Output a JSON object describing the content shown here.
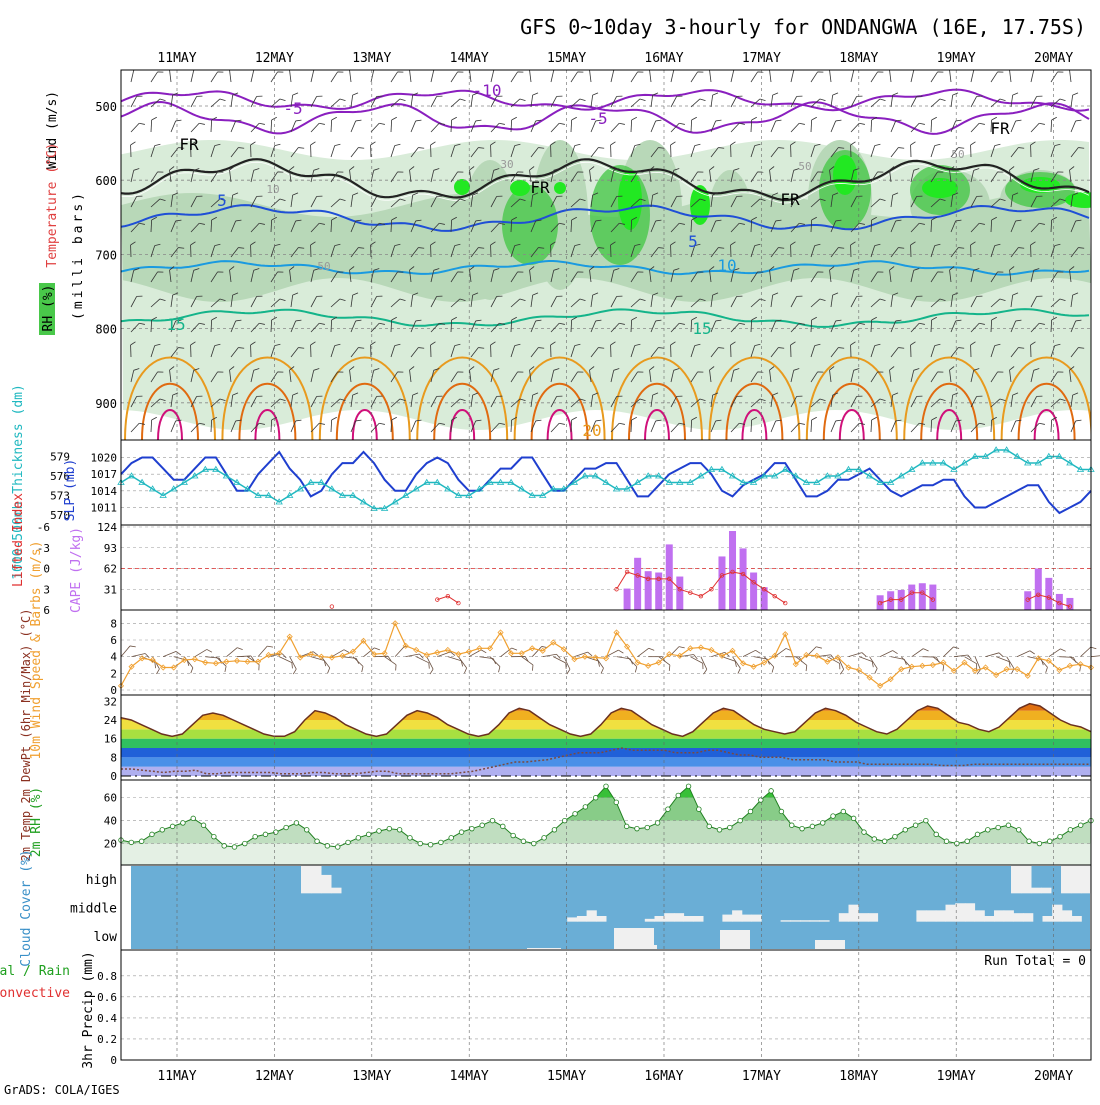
{
  "title": "GFS 0~10day 3-hourly for ONDANGWA (16E, 17.75S)",
  "footer": "GrADS: COLA/IGES",
  "days": [
    "11MAY",
    "12MAY",
    "13MAY",
    "14MAY",
    "15MAY",
    "16MAY",
    "17MAY",
    "18MAY",
    "19MAY",
    "20MAY"
  ],
  "colors": {
    "purple": "#8a1fbf",
    "blue": "#1f4fd6",
    "lightblue": "#1a9ae0",
    "green": "#14b48a",
    "orange": "#e89a1e",
    "darkorange": "#e06a10",
    "magenta": "#d0107a",
    "rh_light": "#d9ecd9",
    "rh_mid": "#b8d8b8",
    "rh_dark": "#49c84a",
    "rh_bright": "#22e822",
    "slp": "#1f3fcf",
    "thick": "#20b8c0",
    "cape": "#c070f0",
    "li": "#e03030",
    "wind10": "#f0a030",
    "cloud_bg": "#6aaed6"
  },
  "chart_data": [
    {
      "type": "contour",
      "panel": "upper-air",
      "ylabels": [
        "Wind (m/s)",
        "Temperature (°C)",
        "RH (%)",
        "(milli bars)"
      ],
      "yticks": [
        500,
        600,
        700,
        800,
        900
      ],
      "ylim": [
        950,
        450
      ],
      "temperature_contour_labels": [
        "-10",
        "-5",
        "-5",
        "FR",
        "FR",
        "FR",
        "FR",
        "5",
        "5",
        "10",
        "15",
        "15",
        "20"
      ],
      "rh_contour_labels": [
        "30",
        "50",
        "10",
        "50",
        "50"
      ]
    },
    {
      "type": "line",
      "panel": "slp-thickness",
      "ylabel_left": "1000-500mb Thickness (dm)",
      "ylabel_right": "SLP (mb)",
      "yticks_left": [
        570,
        573,
        576,
        579
      ],
      "yticks_right": [
        1011,
        1014,
        1017,
        1020
      ],
      "series": [
        {
          "name": "SLP",
          "values": [
            1017,
            1019,
            1020,
            1020,
            1018,
            1016,
            1016,
            1018,
            1020,
            1020,
            1017,
            1014,
            1014,
            1017,
            1019,
            1021,
            1018,
            1016,
            1013,
            1014,
            1017,
            1019,
            1019,
            1021,
            1019,
            1016,
            1014,
            1014,
            1017,
            1019,
            1020,
            1019,
            1016,
            1014,
            1014,
            1016,
            1018,
            1018,
            1020,
            1020,
            1017,
            1014,
            1014,
            1016,
            1018,
            1018,
            1019,
            1019,
            1016,
            1013,
            1013,
            1015,
            1017,
            1018,
            1019,
            1019,
            1017,
            1014,
            1013,
            1015,
            1016,
            1017,
            1019,
            1019,
            1016,
            1013,
            1013,
            1014,
            1016,
            1016,
            1017,
            1018,
            1016,
            1014,
            1013,
            1014,
            1015,
            1015,
            1016,
            1016,
            1013,
            1011,
            1011,
            1012,
            1013,
            1014,
            1015,
            1015,
            1012,
            1010,
            1011,
            1012,
            1014
          ]
        },
        {
          "name": "Thickness",
          "values": [
            575,
            576,
            575,
            574,
            573,
            574,
            575,
            576,
            577,
            577,
            576,
            575,
            574,
            573,
            573,
            572,
            573,
            574,
            575,
            575,
            574,
            573,
            573,
            572,
            571,
            571,
            572,
            573,
            574,
            575,
            575,
            574,
            573,
            573,
            574,
            575,
            575,
            575,
            574,
            573,
            573,
            574,
            574,
            575,
            576,
            576,
            575,
            574,
            574,
            575,
            576,
            576,
            575,
            575,
            575,
            576,
            577,
            577,
            576,
            575,
            575,
            576,
            576,
            577,
            576,
            575,
            575,
            576,
            576,
            577,
            577,
            576,
            575,
            575,
            576,
            577,
            578,
            578,
            578,
            577,
            578,
            579,
            579,
            580,
            580,
            579,
            578,
            578,
            579,
            579,
            578,
            577,
            577
          ]
        }
      ]
    },
    {
      "type": "bar",
      "panel": "cape-lifted-index",
      "ylabel_left": "Lifted Index",
      "ylabel_right": "CAPE (J/kg)",
      "yticks_left": [
        6,
        3,
        0,
        -3,
        -6
      ],
      "yticks_right": [
        31,
        62,
        93,
        124
      ],
      "cape_values": [
        0,
        0,
        0,
        0,
        0,
        0,
        0,
        0,
        0,
        0,
        0,
        0,
        0,
        0,
        0,
        0,
        0,
        0,
        0,
        0,
        0,
        0,
        0,
        0,
        0,
        0,
        0,
        0,
        0,
        0,
        0,
        0,
        0,
        0,
        0,
        0,
        0,
        0,
        0,
        0,
        0,
        0,
        0,
        0,
        0,
        0,
        0,
        0,
        32,
        78,
        58,
        56,
        98,
        50,
        0,
        0,
        0,
        80,
        118,
        92,
        56,
        34,
        0,
        0,
        0,
        0,
        0,
        0,
        0,
        0,
        0,
        0,
        22,
        28,
        30,
        38,
        40,
        38,
        0,
        0,
        0,
        0,
        0,
        0,
        0,
        0,
        28,
        62,
        48,
        24,
        18,
        0,
        0
      ],
      "li_values": [
        6,
        6,
        6,
        6,
        6,
        6,
        6,
        6,
        6,
        6,
        6,
        6,
        6,
        6,
        6,
        6,
        6,
        6,
        6,
        6,
        5.5,
        6,
        6,
        6,
        6,
        6,
        6,
        6,
        6,
        6,
        4.5,
        4,
        5,
        6,
        6,
        6,
        6,
        6,
        6,
        6,
        6,
        6,
        6,
        6,
        6,
        6,
        6,
        3,
        0.5,
        1,
        1.5,
        1.5,
        1.5,
        3,
        3.5,
        4,
        3,
        1,
        0.5,
        0.8,
        2,
        3,
        4,
        5,
        6,
        6,
        6,
        6,
        6,
        6,
        6,
        6,
        5,
        4.5,
        4.5,
        3.5,
        3.5,
        4.5,
        6,
        6,
        6,
        6,
        6,
        6,
        6,
        6,
        4.5,
        3.8,
        4.2,
        5,
        5.5,
        6,
        6
      ],
      "threshold_line": 0
    },
    {
      "type": "line",
      "panel": "10m-wind",
      "ylabel": "10m Wind Speed & Barbs (m/s)",
      "yticks": [
        0,
        2,
        4,
        6,
        8
      ],
      "values": [
        0.5,
        2.8,
        3.8,
        3.6,
        2.7,
        2.7,
        3.6,
        3.7,
        3.3,
        3.2,
        3.4,
        3.5,
        3.4,
        3.4,
        4.2,
        4.4,
        6.4,
        3.9,
        4.3,
        4.0,
        3.9,
        4.1,
        4.6,
        5.9,
        4.3,
        4.4,
        8.0,
        5.3,
        4.8,
        4.2,
        4.5,
        4.8,
        4.3,
        4.6,
        5.0,
        5.0,
        6.9,
        4.4,
        4.4,
        5.0,
        4.7,
        5.7,
        4.9,
        3.7,
        4.0,
        3.9,
        3.8,
        6.9,
        5.2,
        3.3,
        2.9,
        3.3,
        4.3,
        4.1,
        5.0,
        5.1,
        4.8,
        4.1,
        4.7,
        3.2,
        2.8,
        3.3,
        4.1,
        6.7,
        3.1,
        4.2,
        4.1,
        3.4,
        3.9,
        2.7,
        2.4,
        1.5,
        0.5,
        1.3,
        2.5,
        2.8,
        2.9,
        3.0,
        3.3,
        2.3,
        3.3,
        2.3,
        2.7,
        1.8,
        2.5,
        2.5,
        1.7,
        3.8,
        3.5,
        2.4,
        2.9,
        3.1,
        2.7
      ]
    },
    {
      "type": "area",
      "panel": "2m-temp",
      "ylabel": "2m Temp 2m DewPt (6hr Min/Max) (°C)",
      "yticks": [
        0,
        8,
        16,
        24,
        32
      ],
      "temp": [
        25,
        24,
        22,
        20,
        18,
        17,
        18,
        22,
        26,
        27,
        26,
        24,
        22,
        20,
        18,
        17,
        17,
        19,
        24,
        28,
        27,
        25,
        22,
        20,
        18,
        17,
        18,
        22,
        26,
        28,
        27,
        25,
        22,
        20,
        18,
        17,
        18,
        22,
        27,
        29,
        28,
        25,
        22,
        20,
        18,
        17,
        18,
        22,
        27,
        29,
        28,
        25,
        22,
        20,
        18,
        17,
        19,
        23,
        27,
        29,
        28,
        25,
        22,
        20,
        19,
        18,
        19,
        23,
        27,
        29,
        28,
        26,
        23,
        21,
        19,
        18,
        20,
        24,
        28,
        30,
        29,
        26,
        23,
        22,
        20,
        19,
        21,
        25,
        29,
        31,
        30,
        27,
        24,
        22,
        21,
        19
      ],
      "dewpoint": [
        3,
        3,
        2.5,
        2,
        1.5,
        2,
        2,
        2.5,
        1,
        1,
        1.5,
        1.5,
        1.5,
        1.5,
        1.5,
        1,
        1,
        1,
        1.5,
        1.5,
        1,
        1,
        1,
        1.5,
        2,
        2,
        1,
        1,
        1,
        1,
        1,
        1,
        1.5,
        2,
        3,
        4,
        5,
        6,
        6,
        6.5,
        7,
        8,
        9,
        10,
        10,
        10,
        11,
        12,
        11,
        11,
        11,
        11,
        10,
        10,
        10,
        11,
        11,
        10,
        9,
        9,
        8,
        8,
        8,
        7,
        7,
        7,
        7,
        6,
        6,
        6,
        5,
        5,
        5,
        5,
        5,
        5,
        5,
        4.5,
        4.5,
        4.5,
        5,
        5,
        5,
        5,
        5,
        5,
        5,
        5,
        5,
        5,
        5,
        5
      ]
    },
    {
      "type": "area",
      "panel": "2m-rh",
      "ylabel": "2m RH (%)",
      "yticks": [
        20,
        40,
        60
      ],
      "values": [
        23,
        21,
        22,
        28,
        32,
        35,
        38,
        42,
        36,
        26,
        18,
        17,
        20,
        26,
        28,
        30,
        34,
        38,
        32,
        22,
        18,
        17,
        21,
        25,
        28,
        31,
        33,
        32,
        25,
        20,
        19,
        21,
        25,
        30,
        33,
        36,
        40,
        35,
        27,
        22,
        20,
        25,
        32,
        40,
        46,
        52,
        60,
        70,
        56,
        35,
        33,
        34,
        38,
        50,
        62,
        70,
        50,
        35,
        32,
        34,
        40,
        48,
        58,
        66,
        48,
        36,
        33,
        35,
        38,
        44,
        48,
        42,
        30,
        24,
        22,
        26,
        32,
        36,
        40,
        28,
        22,
        20,
        22,
        28,
        32,
        34,
        36,
        32,
        22,
        20,
        22,
        26,
        32,
        36,
        40
      ]
    },
    {
      "type": "bar",
      "panel": "cloud-cover",
      "ylabel": "Cloud Cover (%)",
      "levels": [
        "high",
        "middle",
        "low"
      ],
      "high": [
        0,
        0,
        0,
        0,
        0,
        0,
        0,
        0,
        0,
        0,
        0,
        0,
        0,
        0,
        0,
        0,
        0,
        0,
        100,
        100,
        65,
        20,
        0,
        0,
        0,
        0,
        0,
        0,
        0,
        0,
        0,
        0,
        0,
        0,
        0,
        0,
        0,
        0,
        0,
        0,
        0,
        0,
        0,
        0,
        0,
        0,
        0,
        0,
        0,
        0,
        0,
        0,
        0,
        0,
        0,
        0,
        0,
        0,
        0,
        0,
        0,
        0,
        0,
        0,
        0,
        0,
        0,
        0,
        0,
        0,
        0,
        0,
        0,
        0,
        0,
        0,
        0,
        0,
        0,
        0,
        0,
        0,
        0,
        0,
        0,
        0,
        0,
        0,
        0,
        100,
        100,
        20,
        20,
        0,
        100,
        100,
        100
      ],
      "middle": [
        0,
        0,
        0,
        0,
        0,
        0,
        0,
        0,
        0,
        0,
        0,
        0,
        0,
        0,
        0,
        0,
        0,
        0,
        0,
        0,
        0,
        0,
        0,
        0,
        0,
        0,
        0,
        0,
        0,
        0,
        0,
        0,
        0,
        0,
        0,
        0,
        0,
        0,
        0,
        0,
        0,
        0,
        0,
        0,
        0,
        0,
        15,
        20,
        40,
        20,
        0,
        0,
        0,
        0,
        10,
        20,
        30,
        30,
        20,
        20,
        0,
        0,
        25,
        40,
        25,
        25,
        0,
        0,
        5,
        5,
        5,
        5,
        5,
        0,
        30,
        60,
        30,
        30,
        0,
        0,
        0,
        0,
        40,
        40,
        40,
        60,
        65,
        65,
        40,
        20,
        40,
        40,
        30,
        30,
        0,
        20,
        60,
        40,
        20,
        0
      ]
    },
    {
      "type": "bar",
      "panel": "precip",
      "ylabel": "3hr Precip (mm)",
      "legend": [
        "Total / Rain",
        "Convective"
      ],
      "run_total": "Run Total = 0",
      "yticks": [
        "0",
        "0.2",
        "0.4",
        "0.6",
        "0.8"
      ],
      "values": [
        0
      ]
    }
  ]
}
